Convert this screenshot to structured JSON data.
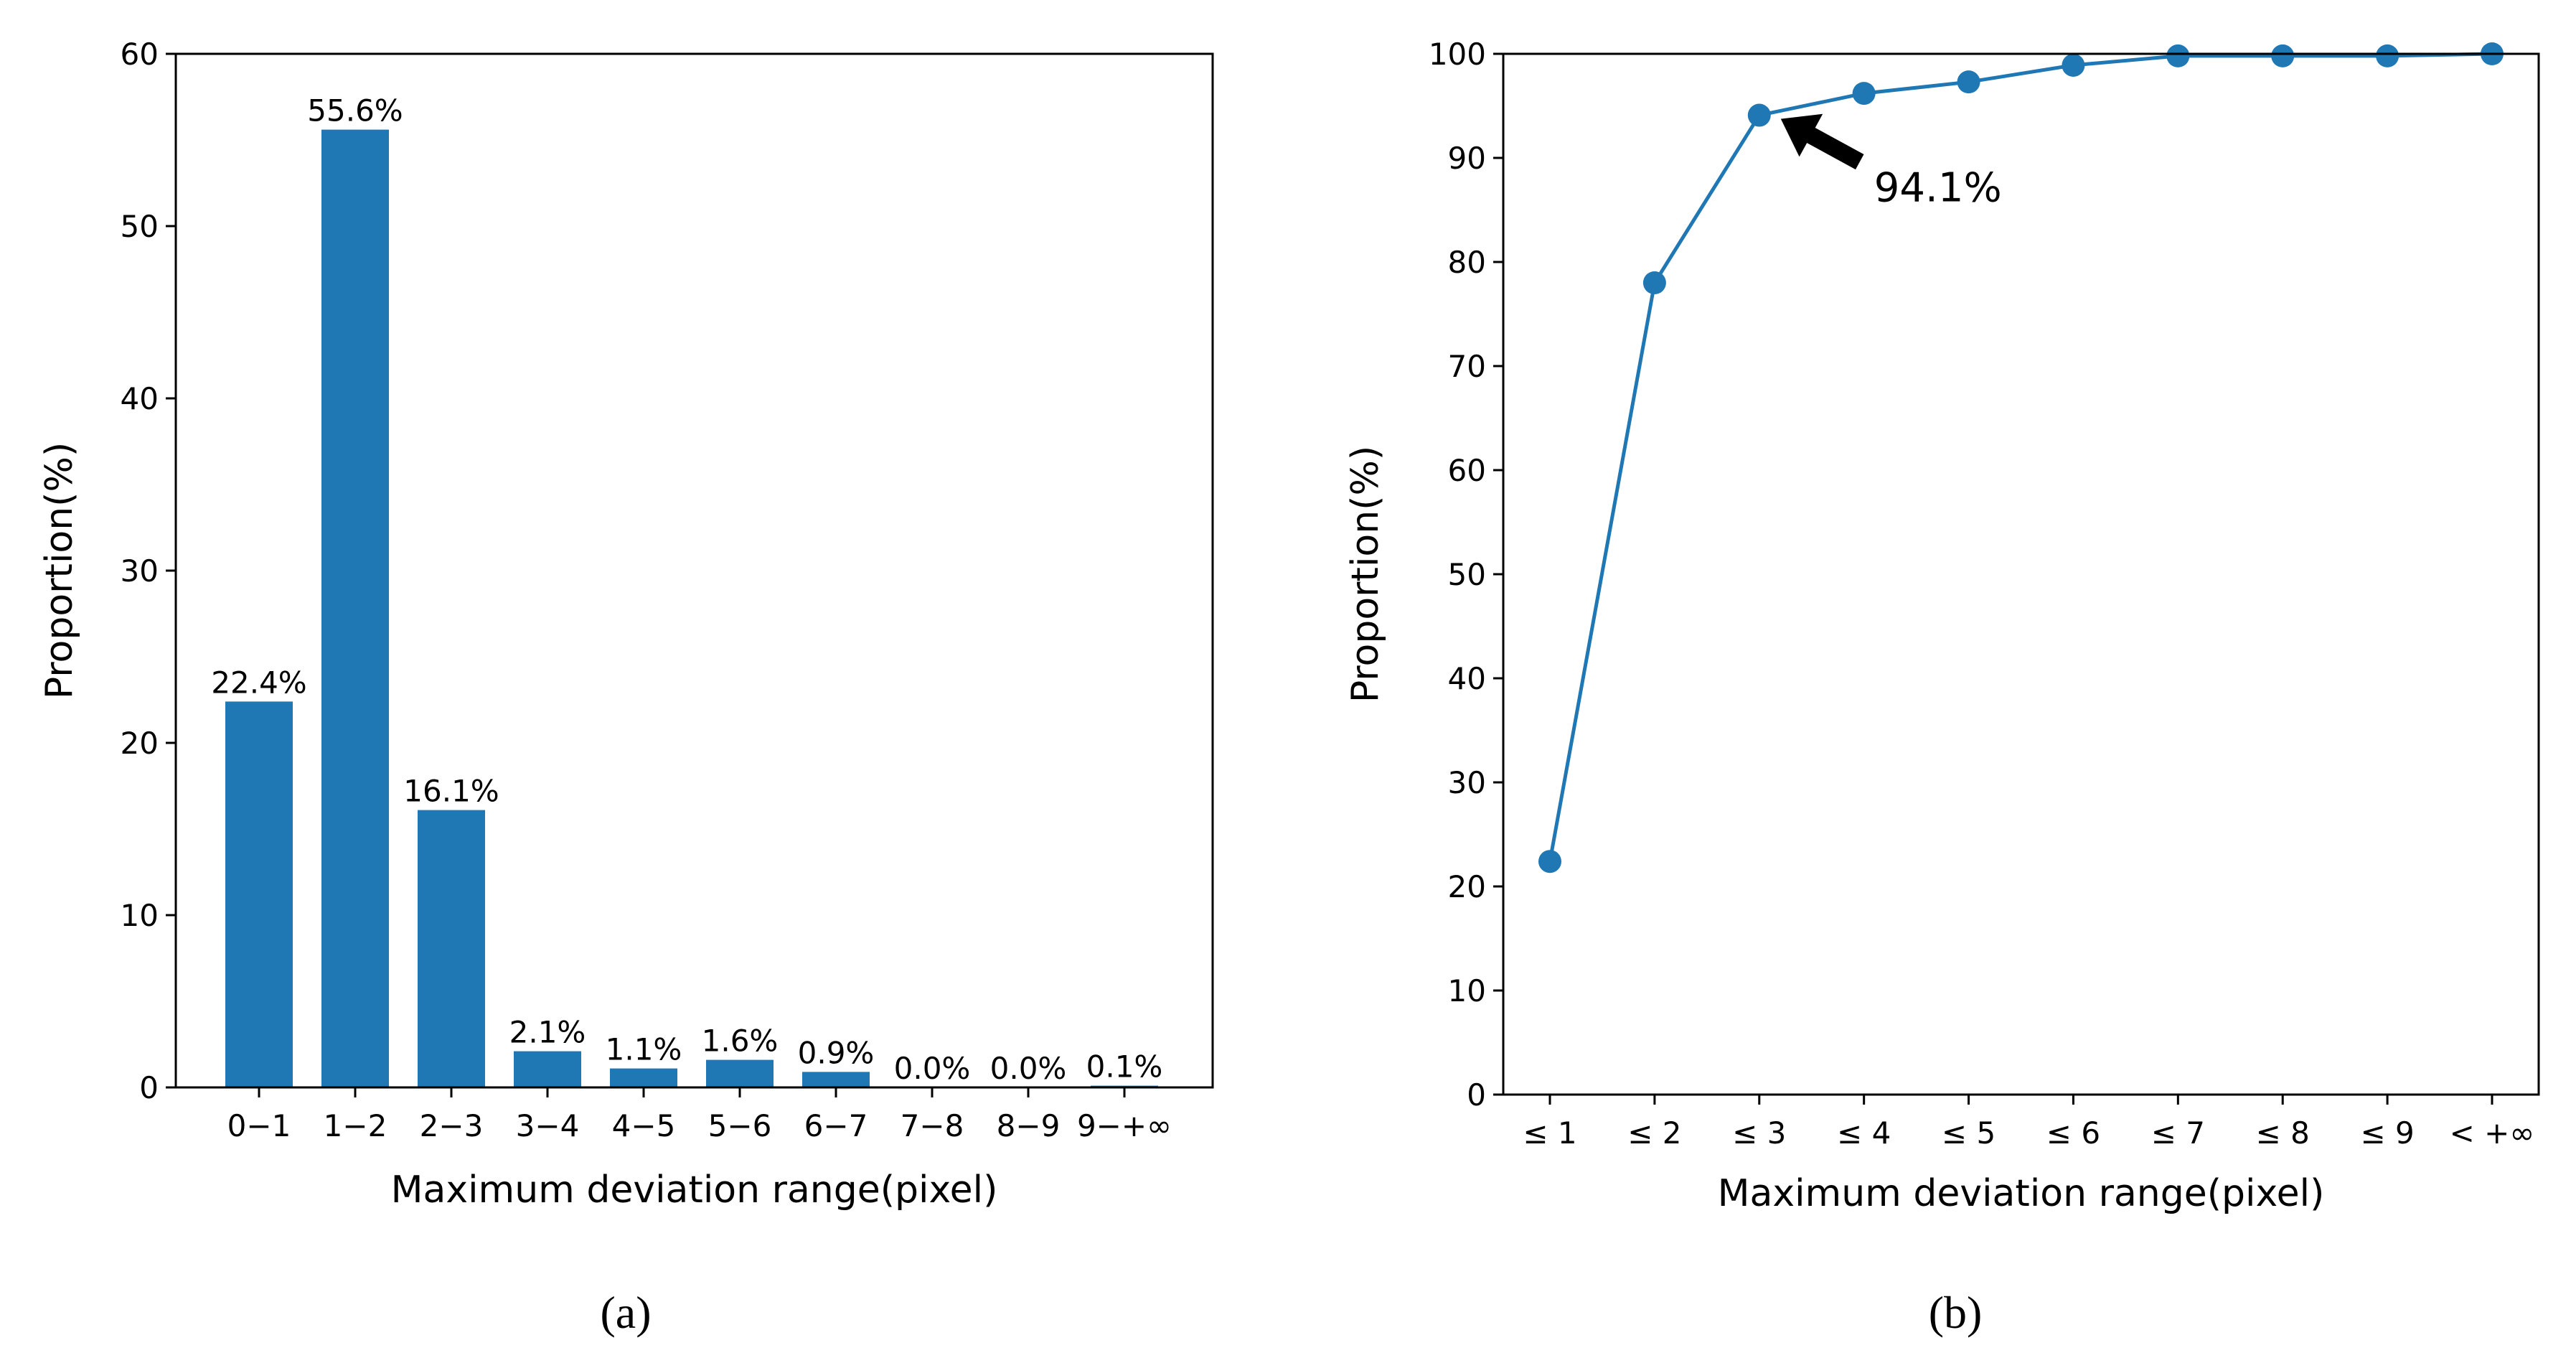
{
  "chart_data": [
    {
      "type": "bar",
      "xlabel": "Maximum deviation range(pixel)",
      "ylabel": "Proportion(%)",
      "ylim": [
        0,
        60
      ],
      "yticks": [
        "0",
        "10",
        "20",
        "30",
        "40",
        "50",
        "60"
      ],
      "categories": [
        "0−1",
        "1−2",
        "2−3",
        "3−4",
        "4−5",
        "5−6",
        "6−7",
        "7−8",
        "8−9",
        "9−+∞"
      ],
      "values": [
        22.4,
        55.6,
        16.1,
        2.1,
        1.1,
        1.6,
        0.9,
        0.0,
        0.0,
        0.1
      ],
      "data_labels": [
        "22.4%",
        "55.6%",
        "16.1%",
        "2.1%",
        "1.1%",
        "1.6%",
        "0.9%",
        "0.0%",
        "0.0%",
        "0.1%"
      ],
      "color": "#1f77b4",
      "grid": false,
      "panel_label": "(a)"
    },
    {
      "type": "line",
      "xlabel": "Maximum deviation range(pixel)",
      "ylabel": "Proportion(%)",
      "ylim": [
        0,
        100
      ],
      "yticks": [
        "0",
        "10",
        "20",
        "30",
        "40",
        "50",
        "60",
        "70",
        "80",
        "90",
        "100"
      ],
      "categories": [
        "≤ 1",
        "≤ 2",
        "≤ 3",
        "≤ 4",
        "≤ 5",
        "≤ 6",
        "≤ 7",
        "≤ 8",
        "≤ 9",
        "< +∞"
      ],
      "values": [
        22.4,
        78.0,
        94.1,
        96.2,
        97.3,
        98.9,
        99.8,
        99.8,
        99.8,
        100.0
      ],
      "annotation": {
        "text": "94.1%",
        "index": 2
      },
      "color": "#1f77b4",
      "grid": false,
      "panel_label": "(b)"
    }
  ]
}
